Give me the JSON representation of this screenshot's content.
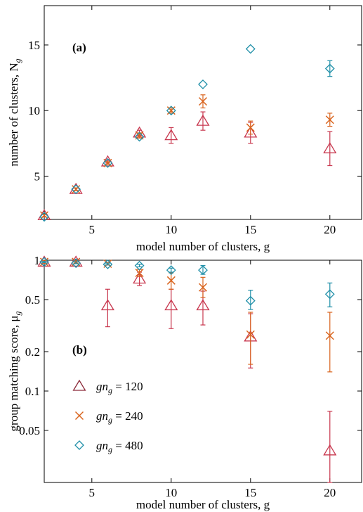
{
  "chart_data": [
    {
      "type": "scatter",
      "panel_label": "(a)",
      "xlabel": "model number of clusters, g",
      "ylabel": "number of clusters, N",
      "ylabel_sub": "g",
      "xlim": [
        2,
        22
      ],
      "ylim": [
        1.7,
        18
      ],
      "x_scale": "linear",
      "y_scale": "linear",
      "x_ticks": [
        5,
        10,
        15,
        20
      ],
      "y_ticks": [
        5,
        10,
        15
      ],
      "grid": false,
      "series": [
        {
          "marker": "triangle",
          "color": "#c8374e",
          "points": [
            {
              "x": 2,
              "y": 2.0,
              "err": 0.1
            },
            {
              "x": 4,
              "y": 4.0,
              "err": 0.1
            },
            {
              "x": 6,
              "y": 6.1,
              "err": 0.1
            },
            {
              "x": 8,
              "y": 8.3,
              "err": 0.2
            },
            {
              "x": 10,
              "y": 8.1,
              "err": 0.6
            },
            {
              "x": 12,
              "y": 9.2,
              "err": 0.7
            },
            {
              "x": 15,
              "y": 8.3,
              "err": 0.8
            },
            {
              "x": 20,
              "y": 7.1,
              "err": 1.3
            }
          ]
        },
        {
          "marker": "x",
          "color": "#d9641e",
          "points": [
            {
              "x": 2,
              "y": 2.0,
              "err": 0.1
            },
            {
              "x": 4,
              "y": 4.0,
              "err": 0.1
            },
            {
              "x": 6,
              "y": 6.0,
              "err": 0.1
            },
            {
              "x": 8,
              "y": 8.1,
              "err": 0.2
            },
            {
              "x": 10,
              "y": 10.0,
              "err": 0.2
            },
            {
              "x": 12,
              "y": 10.7,
              "err": 0.5
            },
            {
              "x": 15,
              "y": 8.7,
              "err": 0.5
            },
            {
              "x": 20,
              "y": 9.3,
              "err": 0.5
            }
          ]
        },
        {
          "marker": "diamond",
          "color": "#1f8fa8",
          "points": [
            {
              "x": 2,
              "y": 1.9,
              "err": 0
            },
            {
              "x": 4,
              "y": 4.0,
              "err": 0
            },
            {
              "x": 6,
              "y": 6.0,
              "err": 0
            },
            {
              "x": 8,
              "y": 8.0,
              "err": 0
            },
            {
              "x": 10,
              "y": 10.0,
              "err": 0
            },
            {
              "x": 12,
              "y": 12.0,
              "err": 0
            },
            {
              "x": 15,
              "y": 14.7,
              "err": 0
            },
            {
              "x": 20,
              "y": 13.2,
              "err": 0.6
            }
          ]
        }
      ]
    },
    {
      "type": "scatter",
      "panel_label": "(b)",
      "xlabel": "model number of clusters, g",
      "ylabel": "group matching score, μ",
      "ylabel_sub": "g",
      "xlim": [
        2,
        22
      ],
      "ylim": [
        0.02,
        1
      ],
      "x_scale": "linear",
      "y_scale": "log",
      "x_ticks": [
        5,
        10,
        15,
        20
      ],
      "y_ticks": [
        1,
        0.5,
        0.2,
        0.1,
        0.05
      ],
      "y_tick_labels": [
        "1",
        "0.5",
        "0.2",
        "0.1",
        "0.05"
      ],
      "grid": false,
      "legend_position": "lower-left",
      "legend": [
        {
          "marker": "triangle",
          "color": "#8c2a3a",
          "label_pre": "gn",
          "label_sub": "g",
          "label_post": " = 120"
        },
        {
          "marker": "x",
          "color": "#d9641e",
          "label_pre": "gn",
          "label_sub": "g",
          "label_post": " = 240"
        },
        {
          "marker": "diamond",
          "color": "#1f8fa8",
          "label_pre": "gn",
          "label_sub": "g",
          "label_post": " = 480"
        }
      ],
      "series": [
        {
          "marker": "triangle",
          "color": "#c8374e",
          "points": [
            {
              "x": 2,
              "y": 0.97,
              "lo": 0.95,
              "hi": 0.99
            },
            {
              "x": 4,
              "y": 0.97,
              "lo": 0.95,
              "hi": 0.99
            },
            {
              "x": 6,
              "y": 0.45,
              "lo": 0.31,
              "hi": 0.6
            },
            {
              "x": 8,
              "y": 0.72,
              "lo": 0.64,
              "hi": 0.81
            },
            {
              "x": 10,
              "y": 0.45,
              "lo": 0.3,
              "hi": 0.6
            },
            {
              "x": 12,
              "y": 0.45,
              "lo": 0.32,
              "hi": 0.58
            },
            {
              "x": 15,
              "y": 0.26,
              "lo": 0.15,
              "hi": 0.39
            },
            {
              "x": 20,
              "y": 0.035,
              "lo": 0.02,
              "hi": 0.07
            }
          ]
        },
        {
          "marker": "x",
          "color": "#d9641e",
          "points": [
            {
              "x": 2,
              "y": 0.97,
              "lo": 0.95,
              "hi": 0.99
            },
            {
              "x": 4,
              "y": 0.97,
              "lo": 0.95,
              "hi": 0.99
            },
            {
              "x": 6,
              "y": 0.94,
              "lo": 0.92,
              "hi": 0.96
            },
            {
              "x": 8,
              "y": 0.8,
              "lo": 0.75,
              "hi": 0.85
            },
            {
              "x": 10,
              "y": 0.7,
              "lo": 0.6,
              "hi": 0.8
            },
            {
              "x": 12,
              "y": 0.62,
              "lo": 0.52,
              "hi": 0.74
            },
            {
              "x": 15,
              "y": 0.27,
              "lo": 0.16,
              "hi": 0.4
            },
            {
              "x": 20,
              "y": 0.265,
              "lo": 0.14,
              "hi": 0.4
            }
          ]
        },
        {
          "marker": "diamond",
          "color": "#1f8fa8",
          "points": [
            {
              "x": 2,
              "y": 0.97,
              "lo": 0.96,
              "hi": 0.98
            },
            {
              "x": 4,
              "y": 0.95,
              "lo": 0.94,
              "hi": 0.97
            },
            {
              "x": 6,
              "y": 0.93,
              "lo": 0.92,
              "hi": 0.95
            },
            {
              "x": 8,
              "y": 0.91,
              "lo": 0.89,
              "hi": 0.93
            },
            {
              "x": 10,
              "y": 0.84,
              "lo": 0.81,
              "hi": 0.87
            },
            {
              "x": 12,
              "y": 0.84,
              "lo": 0.78,
              "hi": 0.91
            },
            {
              "x": 15,
              "y": 0.49,
              "lo": 0.42,
              "hi": 0.59
            },
            {
              "x": 20,
              "y": 0.55,
              "lo": 0.44,
              "hi": 0.67
            }
          ]
        }
      ]
    }
  ]
}
